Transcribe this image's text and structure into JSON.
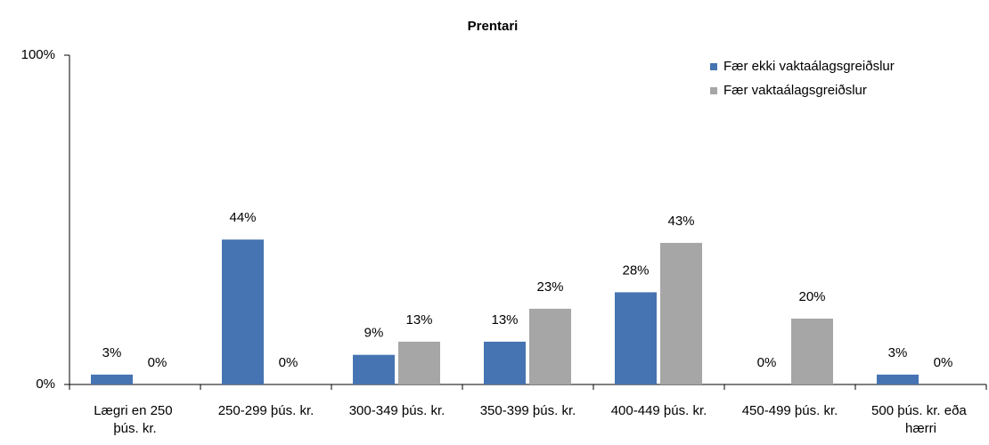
{
  "chart_data": {
    "type": "bar",
    "title": "Prentari",
    "categories": [
      "Lægri en 250 þús. kr.",
      "250-299 þús. kr.",
      "300-349 þús. kr.",
      "350-399 þús. kr.",
      "400-449 þús. kr.",
      "450-499 þús. kr.",
      "500 þús. kr. eða hærri"
    ],
    "series": [
      {
        "name": "Fær ekki vaktaálagsgreiðslur",
        "color": "#4674b2",
        "values": [
          3,
          44,
          9,
          13,
          28,
          0,
          3
        ],
        "value_labels": [
          "3%",
          "44%",
          "9%",
          "13%",
          "28%",
          "0%",
          "3%"
        ]
      },
      {
        "name": "Fær vaktaálagsgreiðslur",
        "color": "#a6a6a6",
        "values": [
          0,
          0,
          13,
          23,
          43,
          20,
          0
        ],
        "value_labels": [
          "0%",
          "0%",
          "13%",
          "23%",
          "43%",
          "20%",
          "0%"
        ]
      }
    ],
    "ylim": [
      0,
      100
    ],
    "yticks": [
      {
        "value": 0,
        "label": "0%"
      },
      {
        "value": 100,
        "label": "100%"
      }
    ],
    "grid": false,
    "legend": "top-right"
  }
}
